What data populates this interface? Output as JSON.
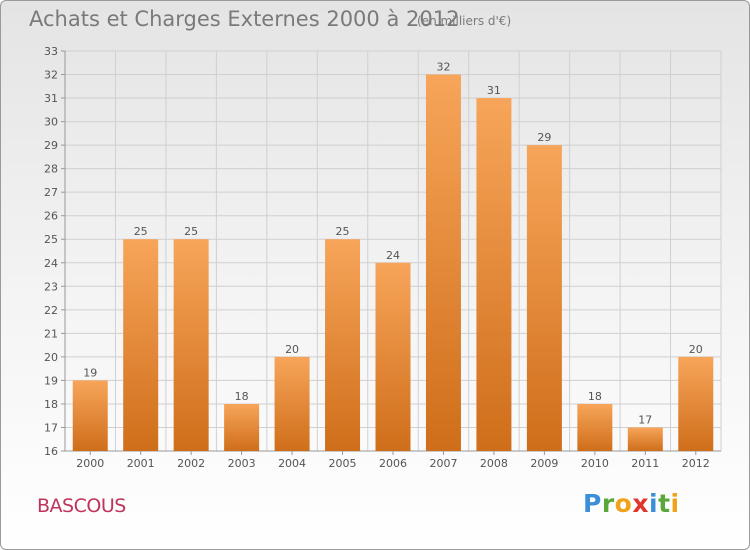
{
  "header": {
    "title": "Achats et Charges Externes 2000 à 2012",
    "subtitle": "(en milliers d'€)"
  },
  "footer": {
    "commune": "BASCOUS",
    "logo_letters": [
      {
        "ch": "P",
        "color": "#3a8fd8"
      },
      {
        "ch": "r",
        "color": "#5aa83a"
      },
      {
        "ch": "o",
        "color": "#f0a21a"
      },
      {
        "ch": "x",
        "color": "#e2342b"
      },
      {
        "ch": "i",
        "color": "#3a8fd8"
      },
      {
        "ch": "t",
        "color": "#5aa83a"
      },
      {
        "ch": "i",
        "color": "#f0a21a"
      }
    ]
  },
  "chart_data": {
    "type": "bar",
    "title": "Achats et Charges Externes 2000 à 2012",
    "subtitle": "(en milliers d'€)",
    "categories": [
      "2000",
      "2001",
      "2002",
      "2003",
      "2004",
      "2005",
      "2006",
      "2007",
      "2008",
      "2009",
      "2010",
      "2011",
      "2012"
    ],
    "values": [
      19,
      25,
      25,
      18,
      20,
      25,
      24,
      32,
      31,
      29,
      18,
      17,
      20
    ],
    "ylim": [
      16,
      33
    ],
    "yticks": [
      16,
      17,
      18,
      19,
      20,
      21,
      22,
      23,
      24,
      25,
      26,
      27,
      28,
      29,
      30,
      31,
      32,
      33
    ],
    "grid": true,
    "data_labels": true,
    "colors": {
      "bar_light": "#f7a55a",
      "bar_dark": "#cf6e1a",
      "grid": "#d0d0d0",
      "text": "#555555",
      "title": "#7a7a7a",
      "commune": "#c0335a"
    }
  }
}
